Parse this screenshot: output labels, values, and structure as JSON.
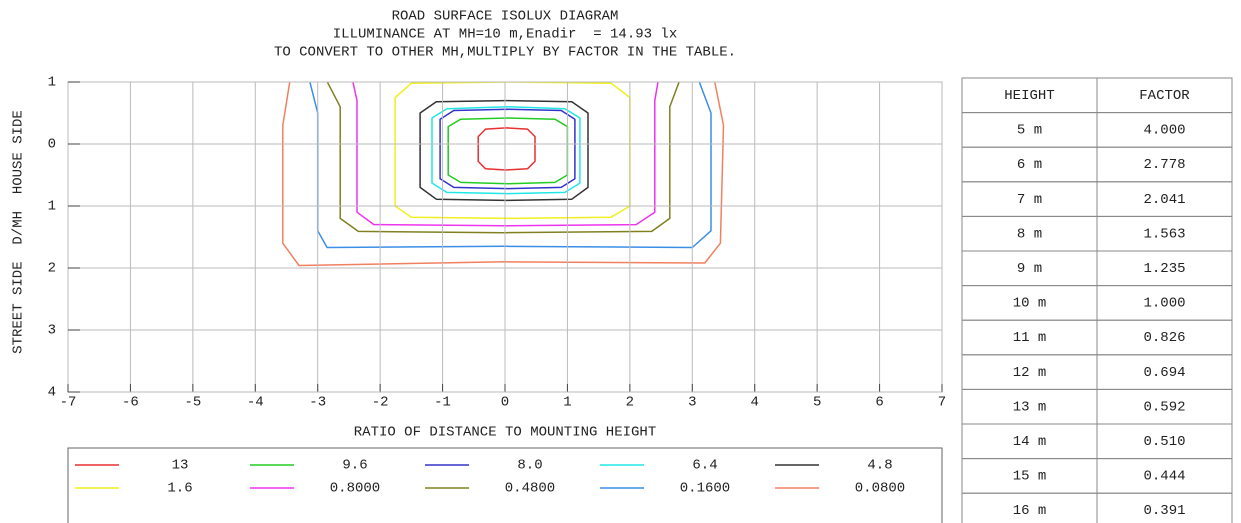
{
  "chart_data": {
    "type": "contour",
    "title": "ROAD SURFACE ISOLUX DIAGRAM",
    "subtitle": "ILLUMINANCE AT MH=10 m,Enadir  = 14.93 lx",
    "note": "TO CONVERT TO OTHER MH,MULTIPLY BY FACTOR IN THE TABLE.",
    "xlabel": "RATIO OF DISTANCE TO MOUNTING HEIGHT",
    "ylabel": "STREET SIDE  D/MH  HOUSE SIDE",
    "xlim": [
      -7,
      7
    ],
    "ylim": [
      -1,
      4
    ],
    "grid": true,
    "xticks": [
      -7,
      -6,
      -5,
      -4,
      -3,
      -2,
      -1,
      0,
      1,
      2,
      3,
      4,
      5,
      6,
      7
    ],
    "yticks": [
      {
        "value": -1,
        "label": "1"
      },
      0,
      1,
      2,
      3,
      4
    ],
    "series": [
      {
        "name": "13",
        "color": "#e83030",
        "x": [
          -0.31,
          0.02,
          0.36,
          0.48,
          0.48,
          0.36,
          0.02,
          -0.31,
          -0.43,
          -0.43
        ],
        "y": [
          -0.24,
          -0.26,
          -0.24,
          -0.12,
          0.28,
          0.4,
          0.42,
          0.4,
          0.28,
          -0.12
        ]
      },
      {
        "name": "9.6",
        "color": "#22cc22",
        "x": [
          -0.71,
          0.05,
          0.8,
          1.0,
          1.0,
          0.8,
          0.05,
          -0.71,
          -0.91,
          -0.91
        ],
        "y": [
          -0.4,
          -0.42,
          -0.4,
          -0.28,
          0.5,
          0.62,
          0.64,
          0.62,
          0.5,
          -0.28
        ]
      },
      {
        "name": "8.0",
        "color": "#3333cc",
        "x": [
          -0.82,
          0.05,
          0.9,
          1.12,
          1.12,
          0.9,
          0.05,
          -0.82,
          -1.04,
          -1.04
        ],
        "y": [
          -0.54,
          -0.56,
          -0.54,
          -0.4,
          0.56,
          0.7,
          0.72,
          0.7,
          0.56,
          -0.4
        ]
      },
      {
        "name": "6.4",
        "color": "#22e6e6",
        "x": [
          -0.93,
          0.05,
          0.96,
          1.2,
          1.2,
          0.96,
          0.05,
          -0.93,
          -1.17,
          -1.17
        ],
        "y": [
          -0.57,
          -0.6,
          -0.57,
          -0.42,
          0.63,
          0.78,
          0.8,
          0.78,
          0.63,
          -0.42
        ]
      },
      {
        "name": "4.8",
        "color": "#333333",
        "x": [
          -1.1,
          0.0,
          1.07,
          1.33,
          1.33,
          1.07,
          0.0,
          -1.1,
          -1.36,
          -1.36
        ],
        "y": [
          -0.68,
          -0.7,
          -0.68,
          -0.5,
          0.7,
          0.89,
          0.91,
          0.89,
          0.7,
          -0.5
        ]
      },
      {
        "name": "1.6",
        "color": "#f0f020",
        "x": [
          -1.5,
          0.1,
          1.7,
          2.0,
          2.0,
          1.7,
          0.1,
          -1.5,
          -1.76,
          -1.76
        ],
        "y": [
          -0.98,
          -1.0,
          -0.98,
          -0.75,
          1.0,
          1.18,
          1.2,
          1.18,
          1.0,
          -0.75
        ]
      },
      {
        "name": "0.8000",
        "color": "#ee33ee",
        "x": [
          -2.5,
          0.0,
          2.5,
          2.4,
          2.4,
          2.1,
          0.0,
          -2.1,
          -2.37,
          -2.37
        ],
        "y": [
          -1.3,
          -1.3,
          -1.3,
          -0.7,
          1.1,
          1.3,
          1.32,
          1.3,
          1.1,
          -0.7
        ]
      },
      {
        "name": "0.4800",
        "color": "#808020",
        "x": [
          -3.0,
          0.0,
          2.9,
          2.64,
          2.64,
          2.35,
          0.0,
          -2.35,
          -2.64,
          -2.64
        ],
        "y": [
          -1.3,
          -1.3,
          -1.3,
          -0.6,
          1.2,
          1.41,
          1.43,
          1.41,
          1.2,
          -0.6
        ]
      },
      {
        "name": "0.1600",
        "color": "#3a8ee6",
        "x": [
          -3.2,
          0.0,
          3.0,
          3.3,
          3.3,
          3.0,
          0.0,
          -2.85,
          -3.0,
          -3.0
        ],
        "y": [
          -1.3,
          -1.3,
          -1.3,
          -0.5,
          1.4,
          1.67,
          1.65,
          1.67,
          1.4,
          -0.5
        ]
      },
      {
        "name": "0.0800",
        "color": "#f08060",
        "x": [
          -3.4,
          0.0,
          3.3,
          3.5,
          3.45,
          3.2,
          0.0,
          -3.3,
          -3.56,
          -3.56
        ],
        "y": [
          -1.3,
          -1.3,
          -1.3,
          -0.3,
          1.6,
          1.92,
          1.9,
          1.96,
          1.6,
          -0.3
        ]
      }
    ]
  },
  "table": {
    "columns": [
      "HEIGHT",
      "FACTOR"
    ],
    "rows": [
      [
        "5 m",
        "4.000"
      ],
      [
        "6 m",
        "2.778"
      ],
      [
        "7 m",
        "2.041"
      ],
      [
        "8 m",
        "1.563"
      ],
      [
        "9 m",
        "1.235"
      ],
      [
        "10 m",
        "1.000"
      ],
      [
        "11 m",
        "0.826"
      ],
      [
        "12 m",
        "0.694"
      ],
      [
        "13 m",
        "0.592"
      ],
      [
        "14 m",
        "0.510"
      ],
      [
        "15 m",
        "0.444"
      ],
      [
        "16 m",
        "0.391"
      ]
    ]
  }
}
